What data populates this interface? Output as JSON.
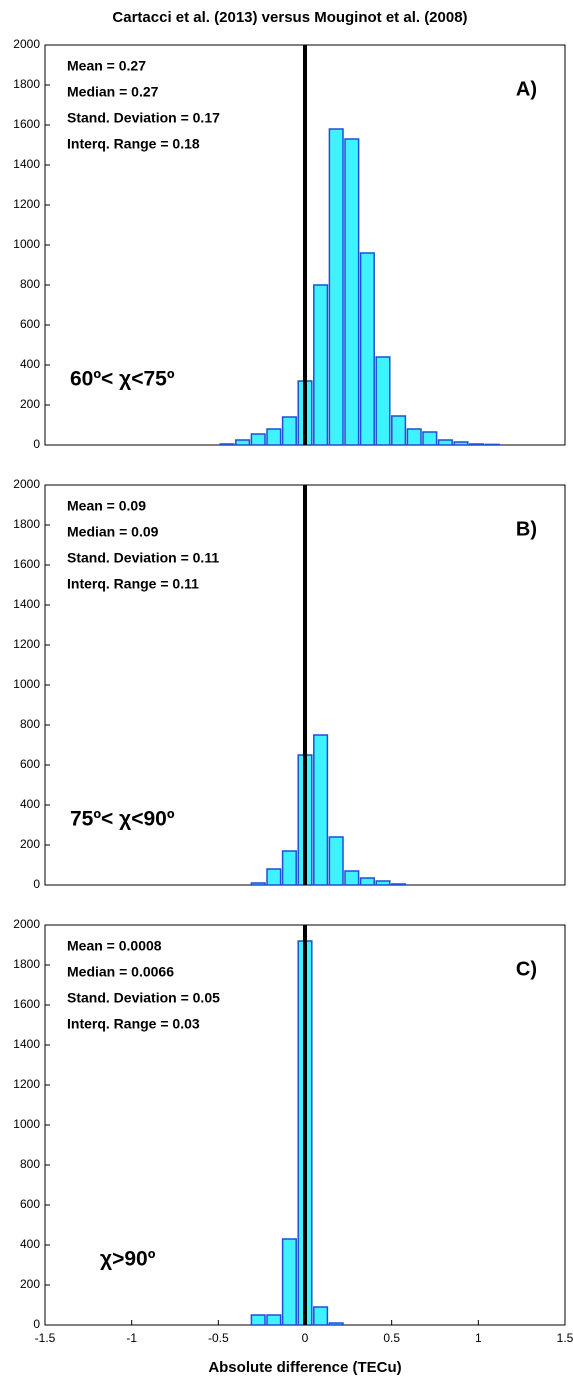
{
  "chart_data": [
    {
      "type": "histogram",
      "title": "Cartacci et al. (2013) versus Mouginot et al. (2008)",
      "bins": [
        -1.485,
        -1.395,
        -1.305,
        -1.215,
        -1.125,
        -1.035,
        -0.945,
        -0.855,
        -0.765,
        -0.675,
        -0.585,
        -0.495,
        -0.405,
        -0.315,
        -0.225,
        -0.135,
        -0.045,
        0.045,
        0.135,
        0.225,
        0.315,
        0.405,
        0.495,
        0.585,
        0.675,
        0.765,
        0.855,
        0.945,
        1.035,
        1.125,
        1.215,
        1.305,
        1.395,
        1.485
      ],
      "values": [
        0,
        0,
        0,
        0,
        0,
        0,
        0,
        0,
        0,
        0,
        0,
        5,
        25,
        55,
        80,
        140,
        320,
        800,
        1580,
        1530,
        960,
        440,
        145,
        80,
        65,
        25,
        15,
        5,
        3,
        0,
        0,
        0,
        0
      ],
      "color": "#3ff2ff",
      "edge_color": "#1f4fd6",
      "xlim": [
        -1.5,
        1.5
      ],
      "ylim": [
        0,
        2000
      ],
      "yticks": [
        0,
        200,
        400,
        600,
        800,
        1000,
        1200,
        1400,
        1600,
        1800,
        2000
      ],
      "vline": 0,
      "stats": [
        "Mean = 0.27",
        "Median = 0.27",
        "Stand. Deviation = 0.17",
        "Interq. Range = 0.18"
      ],
      "panel_label": "A)",
      "range_label": "60º< χ<75º"
    },
    {
      "type": "histogram",
      "bins": [
        -1.485,
        -1.395,
        -1.305,
        -1.215,
        -1.125,
        -1.035,
        -0.945,
        -0.855,
        -0.765,
        -0.675,
        -0.585,
        -0.495,
        -0.405,
        -0.315,
        -0.225,
        -0.135,
        -0.045,
        0.045,
        0.135,
        0.225,
        0.315,
        0.405,
        0.495,
        0.585,
        0.675,
        0.765,
        0.855,
        0.945,
        1.035,
        1.125,
        1.215,
        1.305,
        1.395,
        1.485
      ],
      "values": [
        0,
        0,
        0,
        0,
        0,
        0,
        0,
        0,
        0,
        0,
        0,
        0,
        0,
        10,
        80,
        170,
        650,
        750,
        240,
        70,
        35,
        20,
        5,
        0,
        0,
        0,
        0,
        0,
        0,
        0,
        0,
        0,
        0
      ],
      "color": "#3ff2ff",
      "edge_color": "#1f4fd6",
      "xlim": [
        -1.5,
        1.5
      ],
      "ylim": [
        0,
        2000
      ],
      "yticks": [
        0,
        200,
        400,
        600,
        800,
        1000,
        1200,
        1400,
        1600,
        1800,
        2000
      ],
      "vline": 0,
      "stats": [
        "Mean = 0.09",
        "Median = 0.09",
        "Stand. Deviation = 0.11",
        "Interq. Range = 0.11"
      ],
      "panel_label": "B)",
      "range_label": "75º< χ<90º"
    },
    {
      "type": "histogram",
      "xlabel": "Absolute difference (TECu)",
      "bins": [
        -1.485,
        -1.395,
        -1.305,
        -1.215,
        -1.125,
        -1.035,
        -0.945,
        -0.855,
        -0.765,
        -0.675,
        -0.585,
        -0.495,
        -0.405,
        -0.315,
        -0.225,
        -0.135,
        -0.045,
        0.045,
        0.135,
        0.225,
        0.315,
        0.405,
        0.495,
        0.585,
        0.675,
        0.765,
        0.855,
        0.945,
        1.035,
        1.125,
        1.215,
        1.305,
        1.395,
        1.485
      ],
      "values": [
        0,
        0,
        0,
        0,
        0,
        0,
        0,
        0,
        0,
        0,
        0,
        0,
        0,
        50,
        50,
        430,
        1920,
        90,
        10,
        0,
        0,
        0,
        0,
        0,
        0,
        0,
        0,
        0,
        0,
        0,
        0,
        0,
        0
      ],
      "color": "#3ff2ff",
      "edge_color": "#1f4fd6",
      "xlim": [
        -1.5,
        1.5
      ],
      "xticks": [
        -1.5,
        -1,
        -0.5,
        0,
        0.5,
        1,
        1.5
      ],
      "ylim": [
        0,
        2000
      ],
      "yticks": [
        0,
        200,
        400,
        600,
        800,
        1000,
        1200,
        1400,
        1600,
        1800,
        2000
      ],
      "vline": 0,
      "stats": [
        "Mean = 0.0008",
        "Median = 0.0066",
        "Stand. Deviation = 0.05",
        "Interq. Range = 0.03"
      ],
      "panel_label": "C)",
      "range_label": "χ>90º"
    }
  ]
}
